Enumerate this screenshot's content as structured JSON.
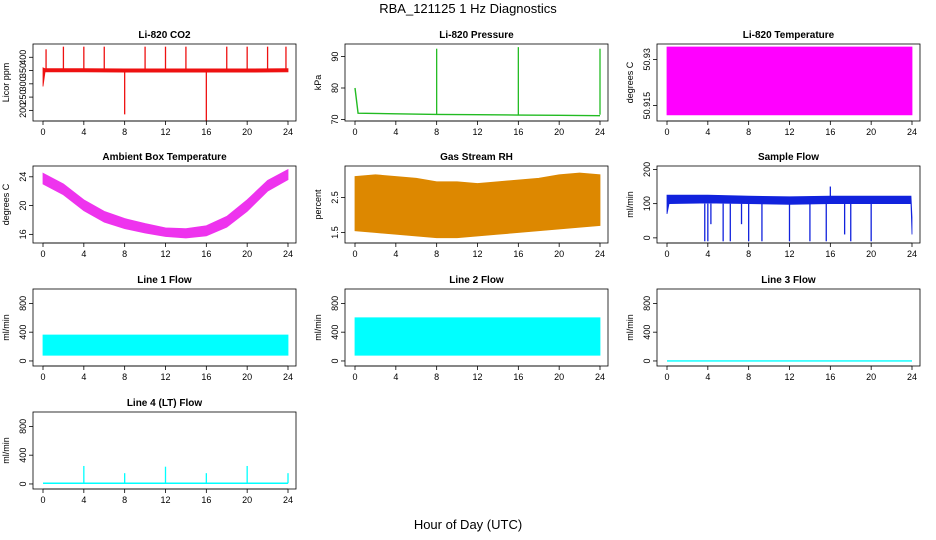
{
  "title": "RBA_121125  1 Hz Diagnostics",
  "xlabel": "Hour of Day (UTC)",
  "colors": {
    "co2": "#ee1111",
    "pressure": "#22bb22",
    "licor_temp": "#ff00ff",
    "box_temp": "#ee33ee",
    "rh": "#dd8800",
    "sample_flow": "#1122dd",
    "line_flow": "#00ffff"
  },
  "chart_data": [
    {
      "type": "line",
      "title": "Li-820 CO2",
      "ylabel": "Licor ppm",
      "xlim": [
        0,
        24
      ],
      "ylim": [
        160,
        450
      ],
      "xticks": [
        0,
        4,
        8,
        12,
        16,
        20,
        24
      ],
      "yticks": [
        200,
        250,
        300,
        350,
        400
      ],
      "series": [
        {
          "color": "co2",
          "style": "band",
          "x": [
            0,
            0.2,
            4,
            8,
            12,
            16,
            20,
            24
          ],
          "low": [
            290,
            345,
            345,
            344,
            344,
            344,
            344,
            345
          ],
          "high": [
            360,
            357,
            357,
            356,
            356,
            356,
            356,
            357
          ]
        },
        {
          "color": "co2",
          "style": "spikes",
          "x": [
            0.3,
            2.0,
            4.0,
            6.0,
            8.0,
            10.0,
            12.0,
            14.0,
            16.0,
            18.0,
            20.0,
            22.0,
            23.8
          ],
          "base": 350,
          "y": [
            430,
            440,
            440,
            440,
            185,
            440,
            440,
            440,
            160,
            440,
            440,
            440,
            440
          ]
        }
      ]
    },
    {
      "type": "line",
      "title": "Li-820 Pressure",
      "ylabel": "kPa",
      "xlim": [
        0,
        24
      ],
      "ylim": [
        69.5,
        94
      ],
      "xticks": [
        0,
        4,
        8,
        12,
        16,
        20,
        24
      ],
      "yticks": [
        70,
        80,
        90
      ],
      "series": [
        {
          "color": "pressure",
          "style": "line",
          "x": [
            0,
            0.3,
            4,
            8,
            12,
            16,
            20,
            24
          ],
          "y": [
            80,
            72,
            71.8,
            71.6,
            71.5,
            71.4,
            71.3,
            71.2
          ]
        },
        {
          "color": "pressure",
          "style": "spikes",
          "x": [
            8,
            16,
            24
          ],
          "base": 71.5,
          "y": [
            92.5,
            93,
            92.5
          ]
        }
      ]
    },
    {
      "type": "area",
      "title": "Li-820 Temperature",
      "ylabel": "degrees C",
      "xlim": [
        0,
        24
      ],
      "ylim": [
        50.91,
        50.935
      ],
      "xticks": [
        0,
        4,
        8,
        12,
        16,
        20,
        24
      ],
      "yticks": [
        50.915,
        50.93
      ],
      "series": [
        {
          "color": "licor_temp",
          "style": "band",
          "x": [
            0,
            24
          ],
          "low": [
            50.912,
            50.912
          ],
          "high": [
            50.934,
            50.934
          ]
        }
      ]
    },
    {
      "type": "line",
      "title": "Ambient Box Temperature",
      "ylabel": "degrees C",
      "xlim": [
        0,
        24
      ],
      "ylim": [
        14.8,
        25.5
      ],
      "xticks": [
        0,
        4,
        8,
        12,
        16,
        20,
        24
      ],
      "yticks": [
        16,
        20,
        24
      ],
      "series": [
        {
          "color": "box_temp",
          "style": "band",
          "x": [
            0,
            2,
            4,
            6,
            8,
            10,
            12,
            14,
            16,
            18,
            20,
            22,
            24
          ],
          "low": [
            23.0,
            21.5,
            19.3,
            17.7,
            16.8,
            16.2,
            15.7,
            15.5,
            15.8,
            17.0,
            19.2,
            22.0,
            23.6
          ],
          "high": [
            24.5,
            23.0,
            20.8,
            19.2,
            18.2,
            17.5,
            16.9,
            16.8,
            17.2,
            18.5,
            20.8,
            23.5,
            25.0
          ]
        }
      ]
    },
    {
      "type": "scatter",
      "title": "Gas Stream RH",
      "ylabel": "percent",
      "xlim": [
        0,
        24
      ],
      "ylim": [
        1.2,
        3.4
      ],
      "xticks": [
        0,
        4,
        8,
        12,
        16,
        20,
        24
      ],
      "yticks": [
        1.5,
        2.5
      ],
      "series": [
        {
          "color": "rh",
          "style": "band",
          "x": [
            0,
            2,
            4,
            6,
            8,
            10,
            12,
            14,
            16,
            18,
            20,
            22,
            24
          ],
          "low": [
            1.55,
            1.5,
            1.45,
            1.4,
            1.35,
            1.35,
            1.4,
            1.45,
            1.5,
            1.55,
            1.6,
            1.65,
            1.7
          ],
          "high": [
            3.1,
            3.15,
            3.1,
            3.05,
            2.95,
            2.95,
            2.9,
            2.95,
            3.0,
            3.05,
            3.15,
            3.2,
            3.15
          ]
        }
      ]
    },
    {
      "type": "line",
      "title": "Sample Flow",
      "ylabel": "ml/min",
      "xlim": [
        0,
        24
      ],
      "ylim": [
        -15,
        210
      ],
      "xticks": [
        0,
        4,
        8,
        12,
        16,
        20,
        24
      ],
      "yticks": [
        0,
        100,
        200
      ],
      "series": [
        {
          "color": "sample_flow",
          "style": "band",
          "x": [
            0,
            0.2,
            4,
            8,
            12,
            16,
            20,
            23.9,
            24
          ],
          "low": [
            70,
            100,
            102,
            100,
            98,
            100,
            100,
            100,
            10
          ],
          "high": [
            125,
            125,
            125,
            122,
            120,
            122,
            122,
            122,
            60
          ]
        },
        {
          "color": "sample_flow",
          "style": "spikes",
          "x": [
            3.7,
            4.0,
            4.3,
            5.5,
            6.2,
            7.3,
            8.0,
            9.3,
            12.0,
            14.0,
            15.6,
            16.0,
            17.4,
            18.0,
            20.0
          ],
          "base": 100,
          "y": [
            -10,
            -10,
            40,
            -10,
            -10,
            40,
            -10,
            -10,
            -10,
            -10,
            -10,
            150,
            10,
            -10,
            -10
          ]
        }
      ]
    },
    {
      "type": "area",
      "title": "Line 1 Flow",
      "ylabel": "ml/min",
      "xlim": [
        0,
        24
      ],
      "ylim": [
        -70,
        1000
      ],
      "xticks": [
        0,
        4,
        8,
        12,
        16,
        20,
        24
      ],
      "yticks": [
        0,
        400,
        800
      ],
      "series": [
        {
          "color": "line_flow",
          "style": "band",
          "x": [
            0,
            24
          ],
          "low": [
            80,
            80
          ],
          "high": [
            360,
            360
          ]
        }
      ]
    },
    {
      "type": "area",
      "title": "Line 2 Flow",
      "ylabel": "ml/min",
      "xlim": [
        0,
        24
      ],
      "ylim": [
        -70,
        1000
      ],
      "xticks": [
        0,
        4,
        8,
        12,
        16,
        20,
        24
      ],
      "yticks": [
        0,
        400,
        800
      ],
      "series": [
        {
          "color": "line_flow",
          "style": "band",
          "x": [
            0,
            24
          ],
          "low": [
            80,
            80
          ],
          "high": [
            600,
            600
          ]
        }
      ]
    },
    {
      "type": "line",
      "title": "Line 3 Flow",
      "ylabel": "ml/min",
      "xlim": [
        0,
        24
      ],
      "ylim": [
        -70,
        1000
      ],
      "xticks": [
        0,
        4,
        8,
        12,
        16,
        20,
        24
      ],
      "yticks": [
        0,
        400,
        800
      ],
      "series": [
        {
          "color": "line_flow",
          "style": "line",
          "x": [
            0,
            24
          ],
          "y": [
            0,
            0
          ]
        }
      ]
    },
    {
      "type": "line",
      "title": "Line 4 (LT) Flow",
      "ylabel": "ml/min",
      "xlim": [
        0,
        24
      ],
      "ylim": [
        -70,
        1000
      ],
      "xticks": [
        0,
        4,
        8,
        12,
        16,
        20,
        24
      ],
      "yticks": [
        0,
        400,
        800
      ],
      "series": [
        {
          "color": "line_flow",
          "style": "line",
          "x": [
            0,
            24
          ],
          "y": [
            10,
            10
          ]
        },
        {
          "color": "line_flow",
          "style": "spikes",
          "x": [
            4,
            8,
            12,
            16,
            20,
            24
          ],
          "base": 10,
          "y": [
            250,
            150,
            240,
            150,
            250,
            150
          ]
        }
      ]
    }
  ]
}
